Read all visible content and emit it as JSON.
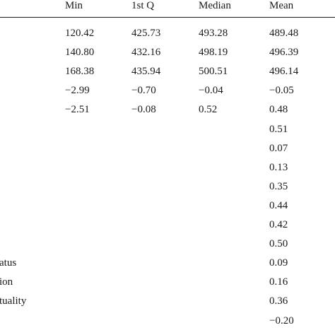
{
  "table": {
    "headers": [
      "Min",
      "1st Q",
      "Median",
      "Mean"
    ],
    "rows": [
      {
        "label": "",
        "values": [
          "120.42",
          "425.73",
          "493.28",
          "489.48"
        ]
      },
      {
        "label": "",
        "values": [
          "140.80",
          "432.16",
          "498.19",
          "496.39"
        ]
      },
      {
        "label": "",
        "values": [
          "168.38",
          "435.94",
          "500.51",
          "496.14"
        ]
      },
      {
        "label": "",
        "values": [
          "−2.99",
          "−0.70",
          "−0.04",
          "−0.05"
        ]
      },
      {
        "label": "",
        "values": [
          "−2.51",
          "−0.08",
          "0.52",
          "0.48"
        ]
      },
      {
        "label": "",
        "values": [
          "",
          "",
          "",
          "0.51"
        ]
      },
      {
        "label": "",
        "values": [
          "",
          "",
          "",
          "0.07"
        ]
      },
      {
        "label": "",
        "values": [
          "",
          "",
          "",
          "0.13"
        ]
      },
      {
        "label": "",
        "values": [
          "",
          "",
          "",
          "0.35"
        ]
      },
      {
        "label": "",
        "values": [
          "",
          "",
          "",
          "0.44"
        ]
      },
      {
        "label": "",
        "values": [
          "",
          "",
          "",
          "0.42"
        ]
      },
      {
        "label": "",
        "values": [
          "",
          "",
          "",
          "0.50"
        ]
      },
      {
        "label": "atus",
        "values": [
          "",
          "",
          "",
          "0.09"
        ]
      },
      {
        "label": "ion",
        "values": [
          "",
          "",
          "",
          "0.16"
        ]
      },
      {
        "label": "tuality",
        "values": [
          "",
          "",
          "",
          "0.36"
        ]
      },
      {
        "label": "",
        "values": [
          "",
          "",
          "",
          "−0.20"
        ]
      }
    ]
  }
}
